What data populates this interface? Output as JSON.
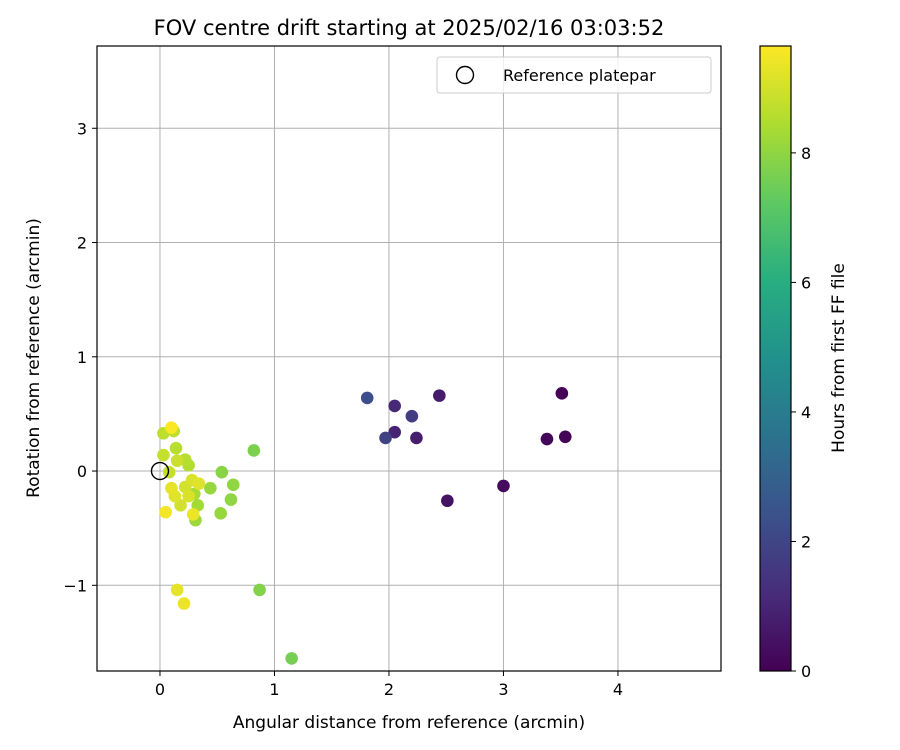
{
  "chart_data": {
    "type": "scatter",
    "title": "FOV centre drift starting at 2025/02/16 03:03:52",
    "xlabel": "Angular distance from reference (arcmin)",
    "ylabel": "Rotation from reference (arcmin)",
    "xlim": [
      -0.55,
      4.9
    ],
    "ylim": [
      -1.75,
      3.72
    ],
    "x_ticks": [
      0,
      1,
      2,
      3,
      4
    ],
    "y_ticks": [
      -1,
      0,
      1,
      2,
      3
    ],
    "x_tick_labels": [
      "0",
      "1",
      "2",
      "3",
      "4"
    ],
    "y_tick_labels": [
      "−1",
      "0",
      "1",
      "2",
      "3"
    ],
    "grid": true,
    "legend": {
      "placement": "top-right",
      "entries": [
        {
          "label": "Reference platepar",
          "marker": "hollow-circle"
        }
      ]
    },
    "reference": {
      "x": 0,
      "y": 0
    },
    "colorbar": {
      "label": "Hours from first FF file",
      "range": [
        0,
        9.65
      ],
      "ticks": [
        0,
        2,
        4,
        6,
        8
      ],
      "tick_labels": [
        "0",
        "2",
        "4",
        "6",
        "8"
      ],
      "colormap": "viridis"
    },
    "series": [
      {
        "points": [
          {
            "x": 3.51,
            "y": 0.68,
            "c": 0.05
          },
          {
            "x": 3.54,
            "y": 0.3,
            "c": 0.1
          },
          {
            "x": 3.38,
            "y": 0.28,
            "c": 0.15
          },
          {
            "x": 3.0,
            "y": -0.13,
            "c": 0.3
          },
          {
            "x": 2.51,
            "y": -0.26,
            "c": 0.5
          },
          {
            "x": 2.44,
            "y": 0.66,
            "c": 0.7
          },
          {
            "x": 2.24,
            "y": 0.29,
            "c": 0.8
          },
          {
            "x": 2.05,
            "y": 0.34,
            "c": 0.95
          },
          {
            "x": 2.05,
            "y": 0.57,
            "c": 1.1
          },
          {
            "x": 2.2,
            "y": 0.48,
            "c": 1.7
          },
          {
            "x": 1.97,
            "y": 0.29,
            "c": 1.9
          },
          {
            "x": 1.81,
            "y": 0.64,
            "c": 2.3
          },
          {
            "x": 1.15,
            "y": -1.64,
            "c": 7.6
          },
          {
            "x": 0.82,
            "y": 0.18,
            "c": 7.7
          },
          {
            "x": 0.87,
            "y": -1.04,
            "c": 7.8
          },
          {
            "x": 0.54,
            "y": -0.01,
            "c": 7.9
          },
          {
            "x": 0.64,
            "y": -0.12,
            "c": 8.0
          },
          {
            "x": 0.62,
            "y": -0.25,
            "c": 8.0
          },
          {
            "x": 0.53,
            "y": -0.37,
            "c": 8.1
          },
          {
            "x": 0.44,
            "y": -0.15,
            "c": 8.1
          },
          {
            "x": 0.31,
            "y": -0.43,
            "c": 8.2
          },
          {
            "x": 0.33,
            "y": -0.3,
            "c": 8.3
          },
          {
            "x": 0.3,
            "y": -0.2,
            "c": 8.4
          },
          {
            "x": 0.25,
            "y": 0.05,
            "c": 8.5
          },
          {
            "x": 0.22,
            "y": 0.1,
            "c": 8.6
          },
          {
            "x": 0.14,
            "y": 0.2,
            "c": 8.6
          },
          {
            "x": 0.12,
            "y": 0.35,
            "c": 8.7
          },
          {
            "x": 0.03,
            "y": 0.33,
            "c": 8.7
          },
          {
            "x": 0.03,
            "y": 0.14,
            "c": 8.8
          },
          {
            "x": 0.08,
            "y": -0.01,
            "c": 8.8
          },
          {
            "x": 0.15,
            "y": 0.09,
            "c": 8.9
          },
          {
            "x": 0.18,
            "y": -0.3,
            "c": 9.0
          },
          {
            "x": 0.22,
            "y": -0.14,
            "c": 9.0
          },
          {
            "x": 0.25,
            "y": -0.22,
            "c": 9.1
          },
          {
            "x": 0.28,
            "y": -0.08,
            "c": 9.1
          },
          {
            "x": 0.34,
            "y": -0.11,
            "c": 9.2
          },
          {
            "x": 0.13,
            "y": -0.22,
            "c": 9.2
          },
          {
            "x": 0.1,
            "y": -0.15,
            "c": 9.3
          },
          {
            "x": 0.15,
            "y": -1.04,
            "c": 9.3
          },
          {
            "x": 0.21,
            "y": -1.16,
            "c": 9.4
          },
          {
            "x": 0.29,
            "y": -0.38,
            "c": 9.4
          },
          {
            "x": 0.05,
            "y": -0.36,
            "c": 9.5
          },
          {
            "x": 0.1,
            "y": 0.38,
            "c": 9.6
          }
        ]
      }
    ]
  }
}
